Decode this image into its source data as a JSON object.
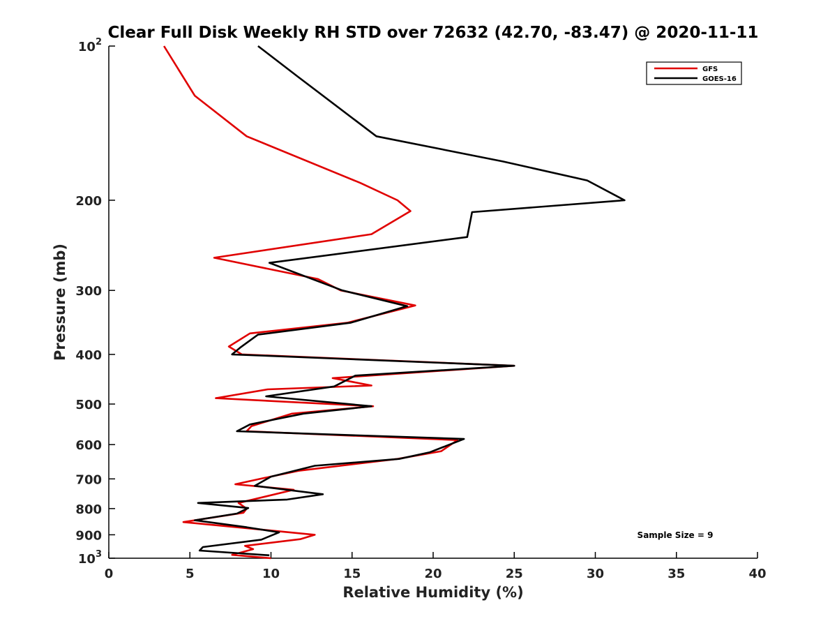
{
  "chart_data": {
    "type": "line",
    "title": "Clear Full Disk Weekly RH STD over 72632 (42.70, -83.47) @ 2020-11-11",
    "xlabel": "Relative Humidity (%)",
    "ylabel": "Pressure (mb)",
    "xlim": [
      0,
      40
    ],
    "ylim": [
      100,
      1000
    ],
    "y_scale": "log",
    "y_reversed": true,
    "x_ticks": [
      "0",
      "5",
      "10",
      "15",
      "20",
      "25",
      "30",
      "35",
      "40"
    ],
    "y_ticks": [
      {
        "value": 100,
        "base": "10",
        "exp": "2"
      },
      {
        "value": 200,
        "label": "200"
      },
      {
        "value": 300,
        "label": "300"
      },
      {
        "value": 400,
        "label": "400"
      },
      {
        "value": 500,
        "label": "500"
      },
      {
        "value": 600,
        "label": "600"
      },
      {
        "value": 700,
        "label": "700"
      },
      {
        "value": 800,
        "label": "800"
      },
      {
        "value": 900,
        "label": "900"
      },
      {
        "value": 1000,
        "base": "10",
        "exp": "3"
      }
    ],
    "grid": false,
    "legend_position": "top-right",
    "annotation": "Sample Size = 9",
    "series": [
      {
        "name": "GFS",
        "color": "#e00000",
        "points": [
          [
            3.4,
            100
          ],
          [
            5.3,
            125
          ],
          [
            8.5,
            150
          ],
          [
            15.5,
            185
          ],
          [
            17.8,
            200
          ],
          [
            18.6,
            210
          ],
          [
            16.2,
            233
          ],
          [
            6.5,
            259
          ],
          [
            12.9,
            285
          ],
          [
            14.3,
            300
          ],
          [
            18.9,
            321
          ],
          [
            14.7,
            347
          ],
          [
            8.7,
            364
          ],
          [
            7.4,
            386
          ],
          [
            8.2,
            400
          ],
          [
            25.0,
            421
          ],
          [
            13.8,
            445
          ],
          [
            16.2,
            460
          ],
          [
            9.8,
            468
          ],
          [
            6.6,
            487
          ],
          [
            16.3,
            505
          ],
          [
            11.3,
            522
          ],
          [
            8.8,
            552
          ],
          [
            8.5,
            565
          ],
          [
            21.5,
            588
          ],
          [
            20.5,
            618
          ],
          [
            17.8,
            640
          ],
          [
            11.7,
            675
          ],
          [
            9.6,
            697
          ],
          [
            7.8,
            717
          ],
          [
            11.4,
            735
          ],
          [
            8.0,
            780
          ],
          [
            8.5,
            800
          ],
          [
            8.3,
            815
          ],
          [
            4.6,
            850
          ],
          [
            12.7,
            900
          ],
          [
            11.8,
            918
          ],
          [
            8.4,
            946
          ],
          [
            8.9,
            960
          ],
          [
            7.6,
            985
          ],
          [
            10.0,
            1000
          ]
        ]
      },
      {
        "name": "GOES-16",
        "color": "#000000",
        "points": [
          [
            9.2,
            100
          ],
          [
            11.7,
            115
          ],
          [
            16.5,
            150
          ],
          [
            24.3,
            168
          ],
          [
            29.5,
            183
          ],
          [
            31.8,
            200
          ],
          [
            22.4,
            211
          ],
          [
            22.1,
            236
          ],
          [
            9.9,
            265
          ],
          [
            14.4,
            300
          ],
          [
            18.4,
            322
          ],
          [
            14.9,
            347
          ],
          [
            9.2,
            366
          ],
          [
            8.1,
            388
          ],
          [
            7.6,
            400
          ],
          [
            25.0,
            421
          ],
          [
            15.2,
            440
          ],
          [
            13.9,
            462
          ],
          [
            9.7,
            483
          ],
          [
            16.2,
            505
          ],
          [
            12.0,
            522
          ],
          [
            8.7,
            548
          ],
          [
            7.9,
            565
          ],
          [
            21.9,
            585
          ],
          [
            21.0,
            600
          ],
          [
            19.8,
            621
          ],
          [
            17.9,
            640
          ],
          [
            12.7,
            660
          ],
          [
            10.0,
            693
          ],
          [
            9.0,
            722
          ],
          [
            13.2,
            750
          ],
          [
            11.0,
            768
          ],
          [
            5.5,
            780
          ],
          [
            8.6,
            798
          ],
          [
            7.9,
            818
          ],
          [
            5.3,
            843
          ],
          [
            8.5,
            870
          ],
          [
            10.5,
            890
          ],
          [
            9.4,
            920
          ],
          [
            5.8,
            951
          ],
          [
            5.6,
            966
          ],
          [
            9.9,
            987
          ]
        ]
      }
    ]
  }
}
